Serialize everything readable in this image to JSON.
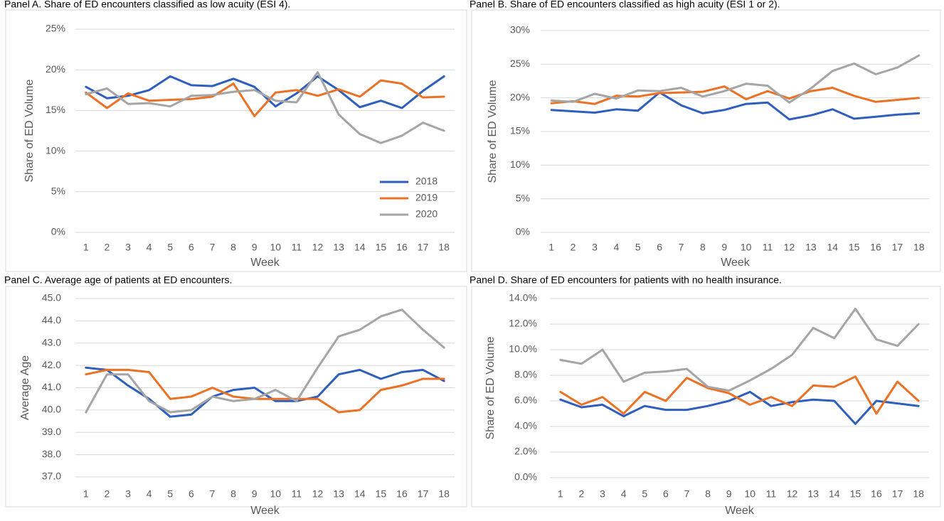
{
  "chart_data": [
    {
      "type": "line",
      "title": "Panel A. Share of ED encounters classified as low acuity (ESI 4).",
      "x_label": "Week",
      "y_label": "Share of ED Volume",
      "categories": [
        "1",
        "2",
        "3",
        "4",
        "5",
        "6",
        "7",
        "8",
        "9",
        "10",
        "11",
        "12",
        "13",
        "14",
        "15",
        "16",
        "17",
        "18"
      ],
      "ylim": [
        0,
        25
      ],
      "yticks": [
        {
          "value": 0,
          "label": "0%"
        },
        {
          "value": 5,
          "label": "5%"
        },
        {
          "value": 10,
          "label": "10%"
        },
        {
          "value": 15,
          "label": "15%"
        },
        {
          "value": 20,
          "label": "20%"
        },
        {
          "value": 25,
          "label": "25%"
        }
      ],
      "grid": true,
      "legend": "lower right",
      "series": [
        {
          "name": "2018",
          "color": "#2e5fbe",
          "values": [
            17.9,
            16.5,
            16.8,
            17.5,
            19.2,
            18.1,
            18.0,
            18.9,
            17.9,
            15.5,
            17.1,
            19.2,
            17.5,
            15.4,
            16.2,
            15.3,
            17.4,
            19.2
          ]
        },
        {
          "name": "2019",
          "color": "#ed7125",
          "values": [
            17.2,
            15.3,
            17.1,
            16.2,
            16.3,
            16.4,
            16.7,
            18.3,
            14.3,
            17.2,
            17.5,
            16.8,
            17.6,
            16.7,
            18.7,
            18.3,
            16.6,
            16.7
          ]
        },
        {
          "name": "2020",
          "color": "#a5a5a5",
          "values": [
            17.0,
            17.7,
            15.8,
            15.9,
            15.5,
            16.8,
            16.9,
            17.3,
            17.5,
            16.2,
            16.0,
            19.7,
            14.5,
            12.1,
            11.0,
            11.9,
            13.5,
            12.5
          ]
        }
      ]
    },
    {
      "type": "line",
      "title": "Panel B. Share of ED encounters classified as high acuity (ESI 1 or 2).",
      "x_label": "Week",
      "y_label": "Share of ED Volume",
      "categories": [
        "1",
        "2",
        "3",
        "4",
        "5",
        "6",
        "7",
        "8",
        "9",
        "10",
        "11",
        "12",
        "13",
        "14",
        "15",
        "16",
        "17",
        "18"
      ],
      "ylim": [
        0,
        30
      ],
      "yticks": [
        {
          "value": 0,
          "label": "0%"
        },
        {
          "value": 5,
          "label": "5%"
        },
        {
          "value": 10,
          "label": "10%"
        },
        {
          "value": 15,
          "label": "15%"
        },
        {
          "value": 20,
          "label": "20%"
        },
        {
          "value": 25,
          "label": "25%"
        },
        {
          "value": 30,
          "label": "30%"
        }
      ],
      "grid": true,
      "series": [
        {
          "color": "#2e5fbe",
          "values": [
            18.2,
            18.0,
            17.8,
            18.3,
            18.1,
            20.8,
            18.9,
            17.7,
            18.2,
            19.1,
            19.3,
            16.8,
            17.4,
            18.3,
            16.9,
            17.2,
            17.5,
            17.7
          ]
        },
        {
          "color": "#ed7125",
          "values": [
            19.2,
            19.5,
            19.1,
            20.3,
            20.2,
            20.7,
            20.8,
            20.9,
            21.7,
            19.8,
            21.0,
            19.9,
            21.0,
            21.5,
            20.3,
            19.4,
            19.7,
            20.0
          ]
        },
        {
          "color": "#a5a5a5",
          "values": [
            19.6,
            19.4,
            20.6,
            19.9,
            21.1,
            21.0,
            21.5,
            20.2,
            21.0,
            22.1,
            21.8,
            19.3,
            21.4,
            24.0,
            25.1,
            23.5,
            24.5,
            26.3
          ]
        }
      ]
    },
    {
      "type": "line",
      "title": "Panel C.  Average age of patients at ED encounters.",
      "x_label": "Week",
      "y_label": "Average Age",
      "categories": [
        "1",
        "2",
        "3",
        "4",
        "5",
        "6",
        "7",
        "8",
        "9",
        "10",
        "11",
        "12",
        "13",
        "14",
        "15",
        "16",
        "17",
        "18"
      ],
      "ylim": [
        37,
        45
      ],
      "yticks": [
        {
          "value": 37,
          "label": "37.0"
        },
        {
          "value": 38,
          "label": "38.0"
        },
        {
          "value": 39,
          "label": "39.0"
        },
        {
          "value": 40,
          "label": "40.0"
        },
        {
          "value": 41,
          "label": "41.0"
        },
        {
          "value": 42,
          "label": "42.0"
        },
        {
          "value": 43,
          "label": "43.0"
        },
        {
          "value": 44,
          "label": "44.0"
        },
        {
          "value": 45,
          "label": "45.0"
        }
      ],
      "grid": true,
      "series": [
        {
          "color": "#2e5fbe",
          "values": [
            41.9,
            41.8,
            41.1,
            40.5,
            39.7,
            39.8,
            40.6,
            40.9,
            41.0,
            40.4,
            40.4,
            40.6,
            41.6,
            41.8,
            41.4,
            41.7,
            41.8,
            41.3
          ]
        },
        {
          "color": "#ed7125",
          "values": [
            41.6,
            41.8,
            41.8,
            41.7,
            40.5,
            40.6,
            41.0,
            40.6,
            40.5,
            40.5,
            40.5,
            40.5,
            39.9,
            40.0,
            40.9,
            41.1,
            41.4,
            41.4
          ]
        },
        {
          "color": "#a5a5a5",
          "values": [
            39.9,
            41.6,
            41.6,
            40.4,
            39.9,
            40.0,
            40.6,
            40.4,
            40.5,
            40.9,
            40.4,
            41.9,
            43.3,
            43.6,
            44.2,
            44.5,
            43.6,
            42.8
          ]
        }
      ]
    },
    {
      "type": "line",
      "title": "Panel D. Share of ED encounters for patients with no health insurance.",
      "x_label": "Week",
      "y_label": "Share of ED Volume",
      "categories": [
        "1",
        "2",
        "3",
        "4",
        "5",
        "6",
        "7",
        "8",
        "9",
        "10",
        "11",
        "12",
        "13",
        "14",
        "15",
        "16",
        "17",
        "18"
      ],
      "ylim": [
        0,
        14
      ],
      "yticks": [
        {
          "value": 0,
          "label": "0.0%"
        },
        {
          "value": 2,
          "label": "2.0%"
        },
        {
          "value": 4,
          "label": "4.0%"
        },
        {
          "value": 6,
          "label": "6.0%"
        },
        {
          "value": 8,
          "label": "8.0%"
        },
        {
          "value": 10,
          "label": "10.0%"
        },
        {
          "value": 12,
          "label": "12.0%"
        },
        {
          "value": 14,
          "label": "14.0%"
        }
      ],
      "grid": true,
      "series": [
        {
          "color": "#2e5fbe",
          "values": [
            6.1,
            5.5,
            5.7,
            4.8,
            5.6,
            5.3,
            5.3,
            5.6,
            6.0,
            6.7,
            5.6,
            5.9,
            6.1,
            6.0,
            4.2,
            6.0,
            5.8,
            5.6
          ]
        },
        {
          "color": "#ed7125",
          "values": [
            6.7,
            5.7,
            6.3,
            5.0,
            6.7,
            6.0,
            7.8,
            7.0,
            6.6,
            5.7,
            6.3,
            5.6,
            7.2,
            7.1,
            7.9,
            5.0,
            7.5,
            6.0
          ]
        },
        {
          "color": "#a5a5a5",
          "values": [
            9.2,
            8.9,
            10.0,
            7.5,
            8.2,
            8.3,
            8.5,
            7.1,
            6.8,
            7.6,
            8.5,
            9.6,
            11.7,
            10.9,
            13.2,
            10.8,
            10.3,
            12.0
          ]
        }
      ]
    }
  ]
}
